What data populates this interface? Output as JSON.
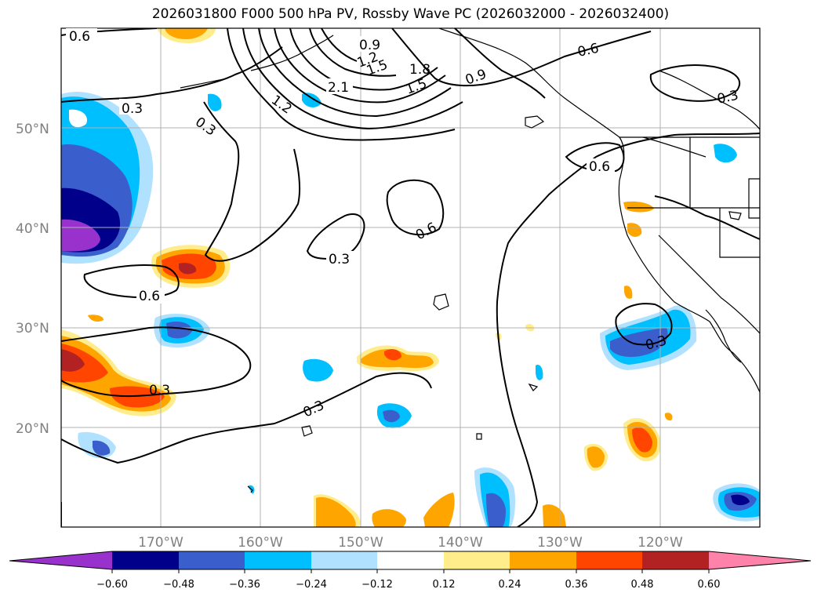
{
  "title": "2026031800 F000 500 hPa PV, Rossby Wave PC (2026032000 - 2026032400)",
  "map": {
    "lat_labels": [
      "50°N",
      "40°N",
      "30°N",
      "20°N"
    ],
    "lon_labels": [
      "170°W",
      "160°W",
      "150°W",
      "140°W",
      "130°W",
      "120°W"
    ],
    "contour_labels": [
      "0.6",
      "0.3",
      "0.3",
      "1.2",
      "2.1",
      "0.9",
      "1.2",
      "1.5",
      "1.8",
      "1.5",
      "0.9",
      "0.6",
      "0.3",
      "0.6",
      "0.6",
      "0.3",
      "0.6",
      "0.3",
      "0.3",
      "0.3"
    ]
  },
  "colorbar": {
    "ticks": [
      "−0.60",
      "−0.48",
      "−0.36",
      "−0.24",
      "−0.12",
      "0.12",
      "0.24",
      "0.36",
      "0.48",
      "0.60"
    ],
    "colors": {
      "under": "#9932cc",
      "neg060": "#00008b",
      "neg048": "#3a5fcd",
      "neg036": "#00bfff",
      "neg024": "#b0e2ff",
      "neutral": "#ffffff",
      "pos012": "#ffec8b",
      "pos024": "#ffa500",
      "pos036": "#ff4500",
      "pos048": "#b22222",
      "over": "#ff82ab"
    }
  }
}
